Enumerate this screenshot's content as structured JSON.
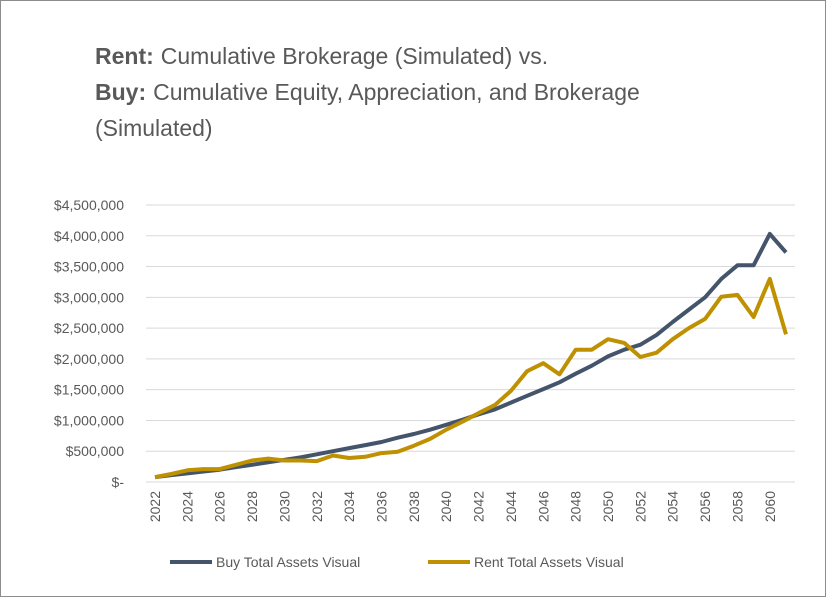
{
  "chart_data": {
    "type": "line",
    "title_lines": [
      {
        "label": "Rent:",
        "text": "Cumulative Brokerage (Simulated) vs."
      },
      {
        "label": "Buy:",
        "text": "Cumulative Equity, Appreciation, and Brokerage"
      },
      {
        "label": null,
        "text": "(Simulated)"
      }
    ],
    "categories": [
      "2022",
      null,
      "2024",
      null,
      "2026",
      null,
      "2028",
      null,
      "2030",
      null,
      "2032",
      null,
      "2034",
      null,
      "2036",
      null,
      "2038",
      null,
      "2040",
      null,
      "2042",
      null,
      "2044",
      null,
      "2046",
      null,
      "2048",
      null,
      "2050",
      null,
      "2052",
      null,
      "2054",
      null,
      "2056",
      null,
      "2058",
      null,
      "2060",
      null
    ],
    "series": [
      {
        "name": "Buy Total Assets Visual",
        "color": "#44546a",
        "values": [
          80000,
          110000,
          140000,
          170000,
          200000,
          240000,
          280000,
          320000,
          360000,
          400000,
          450000,
          500000,
          550000,
          600000,
          650000,
          720000,
          780000,
          850000,
          930000,
          1010000,
          1100000,
          1180000,
          1290000,
          1400000,
          1510000,
          1620000,
          1760000,
          1890000,
          2040000,
          2150000,
          2230000,
          2390000,
          2600000,
          2800000,
          3000000,
          3300000,
          3520000,
          3520000,
          4030000,
          3730000
        ]
      },
      {
        "name": "Rent Total Assets Visual",
        "color": "#bf9000",
        "values": [
          80000,
          130000,
          190000,
          210000,
          210000,
          280000,
          350000,
          380000,
          350000,
          350000,
          340000,
          430000,
          390000,
          410000,
          470000,
          490000,
          590000,
          700000,
          850000,
          980000,
          1120000,
          1250000,
          1480000,
          1800000,
          1930000,
          1750000,
          2150000,
          2150000,
          2320000,
          2260000,
          2030000,
          2100000,
          2320000,
          2500000,
          2650000,
          3010000,
          3040000,
          2680000,
          3300000,
          2400000
        ]
      }
    ],
    "ylim": [
      0,
      4500000
    ],
    "yticks": [
      {
        "value": 0,
        "label": "$-"
      },
      {
        "value": 500000,
        "label": "$500,000"
      },
      {
        "value": 1000000,
        "label": "$1,000,000"
      },
      {
        "value": 1500000,
        "label": "$1,500,000"
      },
      {
        "value": 2000000,
        "label": "$2,000,000"
      },
      {
        "value": 2500000,
        "label": "$2,500,000"
      },
      {
        "value": 3000000,
        "label": "$3,000,000"
      },
      {
        "value": 3500000,
        "label": "$3,500,000"
      },
      {
        "value": 4000000,
        "label": "$4,000,000"
      },
      {
        "value": 4500000,
        "label": "$4,500,000"
      }
    ],
    "grid": true
  }
}
